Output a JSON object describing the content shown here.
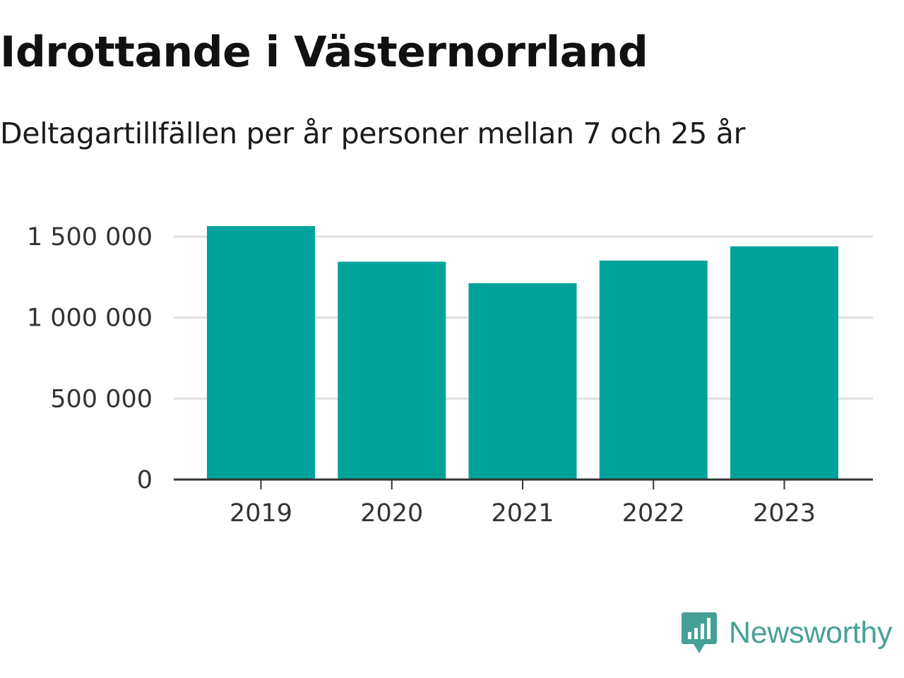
{
  "chart": {
    "title": "Idrottande i Västernorrland",
    "subtitle": "Deltagartillfällen per år personer mellan 7 och 25 år"
  },
  "chart_data": {
    "type": "bar",
    "title": "Idrottande i Västernorrland",
    "subtitle": "Deltagartillfällen per år personer mellan 7 och 25 år",
    "categories": [
      "2019",
      "2020",
      "2021",
      "2022",
      "2023"
    ],
    "values": [
      1565000,
      1345000,
      1212000,
      1352000,
      1440000
    ],
    "xlabel": "",
    "ylabel": "",
    "ylim": [
      0,
      1500000
    ],
    "yticks": [
      0,
      500000,
      1000000,
      1500000
    ],
    "ytick_labels": [
      "0",
      "500 000",
      "1 000 000",
      "1 500 000"
    ],
    "grid": true,
    "legend": "none",
    "bar_color": "#00a39a"
  },
  "brand": {
    "name": "Newsworthy",
    "logo_icon": "newsworthy-logo-icon",
    "color": "#47a096"
  }
}
